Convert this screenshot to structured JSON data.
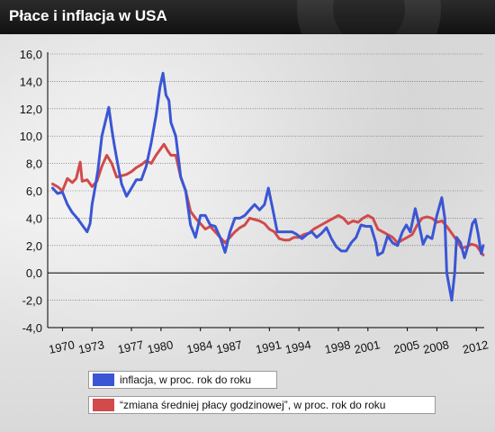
{
  "title": "Płace i inflacja w USA",
  "colors": {
    "inflation": "#3b56d4",
    "wages": "#d24a4a",
    "axis": "#000000"
  },
  "chart_data": {
    "type": "line",
    "title": "Płace i inflacja w USA",
    "xlabel": "",
    "ylabel": "",
    "xlim": [
      1968.5,
      2012.8
    ],
    "ylim": [
      -4.0,
      16.0
    ],
    "y_ticks": [
      "16,0",
      "14,0",
      "12,0",
      "10,0",
      "8,0",
      "6,0",
      "4,0",
      "2,0",
      "0,0",
      "-2,0",
      "-4,0"
    ],
    "y_tick_values": [
      16,
      14,
      12,
      10,
      8,
      6,
      4,
      2,
      0,
      -2,
      -4
    ],
    "x_ticks": [
      "1970",
      "1973",
      "1977",
      "1980",
      "1984",
      "1987",
      "1991",
      "1994",
      "1998",
      "2001",
      "2005",
      "2008",
      "2012"
    ],
    "x_tick_values": [
      1970,
      1973,
      1977,
      1980,
      1984,
      1987,
      1991,
      1994,
      1998,
      2001,
      2005,
      2008,
      2012
    ],
    "grid": true,
    "legend_position": "bottom",
    "series": [
      {
        "name": "inflacja, w proc. rok do roku",
        "points": [
          [
            1969.0,
            6.2
          ],
          [
            1969.5,
            5.8
          ],
          [
            1970.0,
            5.9
          ],
          [
            1970.5,
            5.0
          ],
          [
            1971.0,
            4.4
          ],
          [
            1971.5,
            4.0
          ],
          [
            1972.0,
            3.5
          ],
          [
            1972.5,
            3.0
          ],
          [
            1972.8,
            3.6
          ],
          [
            1973.0,
            5.0
          ],
          [
            1973.3,
            6.2
          ],
          [
            1973.6,
            7.5
          ],
          [
            1974.0,
            10.0
          ],
          [
            1974.4,
            11.2
          ],
          [
            1974.7,
            12.1
          ],
          [
            1975.0,
            10.5
          ],
          [
            1975.3,
            9.2
          ],
          [
            1975.6,
            8.0
          ],
          [
            1976.0,
            6.5
          ],
          [
            1976.5,
            5.6
          ],
          [
            1977.0,
            6.2
          ],
          [
            1977.5,
            6.8
          ],
          [
            1978.0,
            6.8
          ],
          [
            1978.5,
            7.8
          ],
          [
            1979.0,
            9.5
          ],
          [
            1979.5,
            11.5
          ],
          [
            1979.9,
            13.6
          ],
          [
            1980.2,
            14.6
          ],
          [
            1980.5,
            13.0
          ],
          [
            1980.8,
            12.6
          ],
          [
            1981.0,
            11.0
          ],
          [
            1981.5,
            10.0
          ],
          [
            1982.0,
            7.0
          ],
          [
            1982.5,
            6.0
          ],
          [
            1983.0,
            3.5
          ],
          [
            1983.5,
            2.6
          ],
          [
            1984.0,
            4.2
          ],
          [
            1984.5,
            4.2
          ],
          [
            1985.0,
            3.5
          ],
          [
            1985.5,
            3.4
          ],
          [
            1986.0,
            2.6
          ],
          [
            1986.5,
            1.5
          ],
          [
            1987.0,
            3.0
          ],
          [
            1987.5,
            4.0
          ],
          [
            1988.0,
            4.0
          ],
          [
            1988.5,
            4.2
          ],
          [
            1989.0,
            4.6
          ],
          [
            1989.5,
            5.0
          ],
          [
            1990.0,
            4.6
          ],
          [
            1990.5,
            5.0
          ],
          [
            1990.9,
            6.2
          ],
          [
            1991.3,
            4.8
          ],
          [
            1991.8,
            3.0
          ],
          [
            1992.3,
            3.0
          ],
          [
            1992.8,
            3.0
          ],
          [
            1993.3,
            3.0
          ],
          [
            1993.8,
            2.8
          ],
          [
            1994.3,
            2.5
          ],
          [
            1994.8,
            2.8
          ],
          [
            1995.3,
            3.0
          ],
          [
            1995.8,
            2.6
          ],
          [
            1996.3,
            2.9
          ],
          [
            1996.8,
            3.3
          ],
          [
            1997.3,
            2.5
          ],
          [
            1997.8,
            1.9
          ],
          [
            1998.3,
            1.6
          ],
          [
            1998.8,
            1.6
          ],
          [
            1999.3,
            2.2
          ],
          [
            1999.8,
            2.6
          ],
          [
            2000.3,
            3.5
          ],
          [
            2000.8,
            3.4
          ],
          [
            2001.3,
            3.4
          ],
          [
            2001.8,
            2.2
          ],
          [
            2002.0,
            1.3
          ],
          [
            2002.5,
            1.5
          ],
          [
            2003.0,
            2.7
          ],
          [
            2003.5,
            2.2
          ],
          [
            2004.0,
            2.0
          ],
          [
            2004.5,
            3.0
          ],
          [
            2004.9,
            3.5
          ],
          [
            2005.3,
            3.0
          ],
          [
            2005.8,
            4.7
          ],
          [
            2006.2,
            3.5
          ],
          [
            2006.6,
            2.1
          ],
          [
            2007.0,
            2.7
          ],
          [
            2007.5,
            2.5
          ],
          [
            2008.0,
            4.2
          ],
          [
            2008.5,
            5.5
          ],
          [
            2008.8,
            4.0
          ],
          [
            2009.0,
            0.0
          ],
          [
            2009.3,
            -1.2
          ],
          [
            2009.5,
            -2.0
          ],
          [
            2009.8,
            0.0
          ],
          [
            2010.0,
            2.6
          ],
          [
            2010.4,
            2.2
          ],
          [
            2010.8,
            1.1
          ],
          [
            2011.2,
            2.1
          ],
          [
            2011.6,
            3.6
          ],
          [
            2011.9,
            3.9
          ],
          [
            2012.2,
            2.8
          ],
          [
            2012.5,
            1.4
          ],
          [
            2012.7,
            2.0
          ]
        ]
      },
      {
        "name": "“zmiana średniej płacy godzinowej”, w proc. rok do roku",
        "points": [
          [
            1969.0,
            6.5
          ],
          [
            1969.5,
            6.3
          ],
          [
            1970.0,
            6.0
          ],
          [
            1970.5,
            6.9
          ],
          [
            1971.0,
            6.6
          ],
          [
            1971.4,
            6.9
          ],
          [
            1971.8,
            8.1
          ],
          [
            1972.0,
            6.7
          ],
          [
            1972.5,
            6.8
          ],
          [
            1973.0,
            6.3
          ],
          [
            1973.5,
            6.7
          ],
          [
            1974.0,
            7.8
          ],
          [
            1974.5,
            8.6
          ],
          [
            1975.0,
            8.0
          ],
          [
            1975.5,
            7.0
          ],
          [
            1976.0,
            7.1
          ],
          [
            1976.5,
            7.2
          ],
          [
            1977.0,
            7.4
          ],
          [
            1977.5,
            7.7
          ],
          [
            1978.0,
            7.9
          ],
          [
            1978.5,
            8.2
          ],
          [
            1979.0,
            8.0
          ],
          [
            1979.5,
            8.6
          ],
          [
            1980.0,
            9.1
          ],
          [
            1980.3,
            9.4
          ],
          [
            1980.7,
            8.9
          ],
          [
            1981.0,
            8.6
          ],
          [
            1981.5,
            8.6
          ],
          [
            1982.0,
            7.0
          ],
          [
            1982.5,
            6.0
          ],
          [
            1983.0,
            4.5
          ],
          [
            1983.5,
            4.0
          ],
          [
            1984.0,
            3.6
          ],
          [
            1984.5,
            3.2
          ],
          [
            1985.0,
            3.4
          ],
          [
            1985.5,
            3.0
          ],
          [
            1986.0,
            2.6
          ],
          [
            1986.5,
            2.2
          ],
          [
            1987.0,
            2.6
          ],
          [
            1987.5,
            3.0
          ],
          [
            1988.0,
            3.3
          ],
          [
            1988.5,
            3.5
          ],
          [
            1989.0,
            4.0
          ],
          [
            1989.5,
            3.9
          ],
          [
            1990.0,
            3.8
          ],
          [
            1990.5,
            3.6
          ],
          [
            1991.0,
            3.2
          ],
          [
            1991.5,
            3.0
          ],
          [
            1992.0,
            2.5
          ],
          [
            1992.5,
            2.4
          ],
          [
            1993.0,
            2.4
          ],
          [
            1993.5,
            2.6
          ],
          [
            1994.0,
            2.6
          ],
          [
            1994.5,
            2.8
          ],
          [
            1995.0,
            2.9
          ],
          [
            1995.5,
            3.2
          ],
          [
            1996.0,
            3.4
          ],
          [
            1996.5,
            3.6
          ],
          [
            1997.0,
            3.8
          ],
          [
            1997.5,
            4.0
          ],
          [
            1998.0,
            4.2
          ],
          [
            1998.5,
            4.0
          ],
          [
            1999.0,
            3.6
          ],
          [
            1999.5,
            3.8
          ],
          [
            2000.0,
            3.7
          ],
          [
            2000.5,
            4.0
          ],
          [
            2001.0,
            4.2
          ],
          [
            2001.5,
            4.0
          ],
          [
            2002.0,
            3.2
          ],
          [
            2002.5,
            3.0
          ],
          [
            2003.0,
            2.8
          ],
          [
            2003.5,
            2.6
          ],
          [
            2004.0,
            2.2
          ],
          [
            2004.5,
            2.4
          ],
          [
            2005.0,
            2.6
          ],
          [
            2005.5,
            2.8
          ],
          [
            2006.0,
            3.5
          ],
          [
            2006.5,
            4.0
          ],
          [
            2007.0,
            4.1
          ],
          [
            2007.5,
            4.0
          ],
          [
            2008.0,
            3.7
          ],
          [
            2008.5,
            3.8
          ],
          [
            2009.0,
            3.4
          ],
          [
            2009.5,
            2.9
          ],
          [
            2010.0,
            2.4
          ],
          [
            2010.5,
            1.8
          ],
          [
            2011.0,
            1.9
          ],
          [
            2011.5,
            2.1
          ],
          [
            2012.0,
            2.0
          ],
          [
            2012.5,
            1.5
          ],
          [
            2012.7,
            1.3
          ]
        ]
      }
    ]
  }
}
